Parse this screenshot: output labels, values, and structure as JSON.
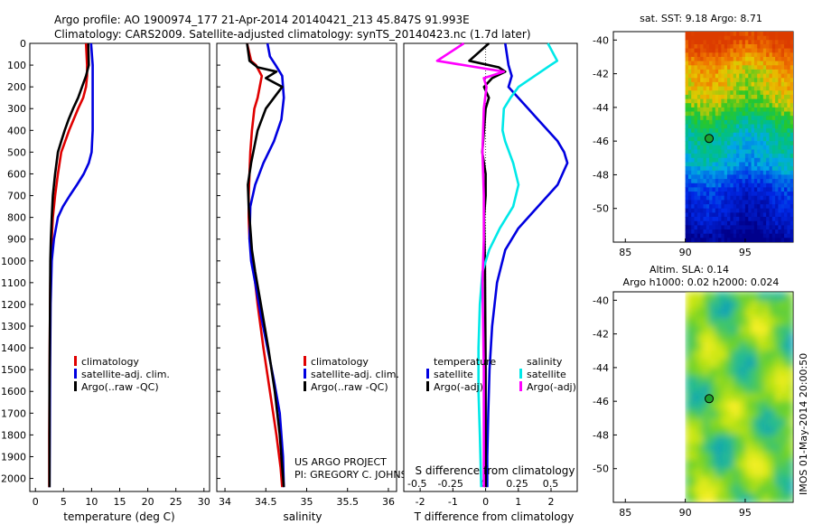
{
  "header": {
    "line1": "Argo profile: AO 1900974_177 21-Apr-2014 20140421_213 45.847S 91.993E",
    "line2": "Climatology: CARS2009. Satellite-adjusted climatology: synTS_20140423.nc (1.7d later)"
  },
  "colors": {
    "climatology": "#e00000",
    "satellite": "#0000e0",
    "argo": "#000000",
    "sat_salinity": "#00e8e8",
    "argo_salinity": "#ff00ff"
  },
  "credit": {
    "line1": "US ARGO PROJECT",
    "line2": "PI: GREGORY C. JOHNSON"
  },
  "imos_stamp": "IMOS 01-May-2014 20:00:50",
  "chart_data": [
    {
      "type": "line",
      "id": "temperature",
      "xlabel": "temperature (deg C)",
      "ylabel": "",
      "xlim": [
        -1,
        31
      ],
      "ylim": [
        2060,
        0
      ],
      "xticks": [
        0,
        5,
        10,
        15,
        20,
        25,
        30
      ],
      "xtick_labels": [
        "0",
        "5",
        "10",
        "15",
        "20",
        "25",
        "30"
      ],
      "yticks": [
        0,
        100,
        200,
        300,
        400,
        500,
        600,
        700,
        800,
        900,
        1000,
        1100,
        1200,
        1300,
        1400,
        1500,
        1600,
        1700,
        1800,
        1900,
        2000
      ],
      "ytick_labels": [
        "0",
        "100",
        "200",
        "300",
        "400",
        "500",
        "600",
        "700",
        "800",
        "900",
        "1000",
        "1100",
        "1200",
        "1300",
        "1400",
        "1500",
        "1600",
        "1700",
        "1800",
        "1900",
        "2000"
      ],
      "legend": {
        "position": "lower-center",
        "entries": [
          "climatology",
          "satellite-adj. clim.",
          "Argo(..raw -QC)"
        ]
      },
      "series": [
        {
          "name": "climatology",
          "color": "#e00000",
          "x": [
            9.0,
            9.2,
            9.2,
            9.0,
            8.5,
            7.6,
            6.8,
            6.0,
            5.3,
            4.6,
            4.0,
            3.5,
            3.1,
            2.9,
            2.7,
            2.6,
            2.55,
            2.5,
            2.45,
            2.45
          ],
          "depth": [
            0,
            100,
            150,
            200,
            250,
            300,
            350,
            400,
            450,
            500,
            600,
            700,
            800,
            900,
            1000,
            1200,
            1400,
            1600,
            1800,
            2040
          ]
        },
        {
          "name": "satellite-adj. clim.",
          "color": "#0000e0",
          "x": [
            9.9,
            10.2,
            10.2,
            10.2,
            10.2,
            10.1,
            10.0,
            9.5,
            8.6,
            7.4,
            6.1,
            4.9,
            4.0,
            3.3,
            2.9,
            2.7,
            2.6,
            2.55,
            2.5
          ],
          "depth": [
            0,
            100,
            200,
            300,
            400,
            450,
            500,
            550,
            600,
            650,
            700,
            750,
            800,
            900,
            1000,
            1200,
            1500,
            1800,
            2040
          ]
        },
        {
          "name": "Argo(..raw -QC)",
          "color": "#000000",
          "x": [
            9.4,
            9.5,
            9.0,
            8.3,
            7.6,
            6.7,
            5.9,
            5.2,
            4.6,
            4.0,
            3.5,
            3.1,
            2.9,
            2.75,
            2.65,
            2.6,
            2.55,
            2.5,
            2.5
          ],
          "depth": [
            0,
            100,
            150,
            200,
            250,
            300,
            350,
            400,
            450,
            500,
            600,
            700,
            800,
            900,
            1000,
            1200,
            1400,
            1600,
            2040
          ]
        }
      ]
    },
    {
      "type": "line",
      "id": "salinity",
      "xlabel": "salinity",
      "ylabel": "",
      "xlim": [
        33.9,
        36.1
      ],
      "ylim": [
        2060,
        0
      ],
      "xticks": [
        34,
        34.5,
        35,
        35.5,
        36
      ],
      "xtick_labels": [
        "34",
        "34.5",
        "35",
        "35.5",
        "36"
      ],
      "legend": {
        "position": "lower-center",
        "entries": [
          "climatology",
          "satellite-adj. clim.",
          "Argo(..raw -QC)"
        ]
      },
      "series": [
        {
          "name": "climatology",
          "color": "#e00000",
          "x": [
            34.27,
            34.32,
            34.38,
            34.45,
            34.4,
            34.36,
            34.33,
            34.31,
            34.3,
            34.29,
            34.29,
            34.3,
            34.34,
            34.4,
            34.47,
            34.55,
            34.63,
            34.68,
            34.7
          ],
          "depth": [
            0,
            80,
            100,
            150,
            250,
            300,
            400,
            500,
            600,
            700,
            800,
            900,
            1000,
            1200,
            1400,
            1600,
            1800,
            1950,
            2040
          ]
        },
        {
          "name": "satellite-adj. clim.",
          "color": "#0000e0",
          "x": [
            34.52,
            34.55,
            34.62,
            34.7,
            34.72,
            34.69,
            34.6,
            34.47,
            34.37,
            34.31,
            34.3,
            34.32,
            34.37,
            34.44,
            34.52,
            34.6,
            34.67,
            34.71,
            34.72
          ],
          "depth": [
            0,
            60,
            100,
            150,
            250,
            350,
            450,
            550,
            650,
            750,
            900,
            1000,
            1100,
            1250,
            1400,
            1550,
            1700,
            1900,
            2040
          ]
        },
        {
          "name": "Argo(..raw -QC)",
          "color": "#000000",
          "x": [
            34.27,
            34.3,
            34.4,
            34.63,
            34.5,
            34.7,
            34.62,
            34.5,
            34.4,
            34.32,
            34.28,
            34.29,
            34.31,
            34.33,
            34.37,
            34.44,
            34.53,
            34.61,
            34.67,
            34.7,
            34.72
          ],
          "depth": [
            0,
            80,
            110,
            130,
            160,
            200,
            240,
            300,
            400,
            550,
            650,
            750,
            850,
            950,
            1050,
            1200,
            1400,
            1600,
            1800,
            1950,
            2040
          ]
        }
      ]
    },
    {
      "type": "line",
      "id": "difference",
      "xlabel": "T difference from climatology",
      "xlabel_top": "S difference from climatology",
      "ylabel": "",
      "xlim": [
        -2.5,
        2.8
      ],
      "xlim_top": [
        -0.6,
        0.7
      ],
      "ylim": [
        2060,
        0
      ],
      "xticks": [
        -2,
        -1,
        0,
        1,
        2
      ],
      "xtick_labels": [
        "-2",
        "-1",
        "0",
        "1",
        "2"
      ],
      "xticks_top": [
        -0.5,
        -0.25,
        0,
        0.25,
        0.5
      ],
      "xtick_labels_top": [
        "-0.5",
        "-0.25",
        "0",
        "0.25",
        "0.5"
      ],
      "legend": {
        "position": "lower-center",
        "headers": [
          "temperature",
          "salinity"
        ],
        "entries": [
          "satellite",
          "Argo(-adj)",
          "satellite",
          "Argo(-adj)"
        ]
      },
      "series": [
        {
          "name": "temperature satellite",
          "axis": "T",
          "color": "#0000e0",
          "x": [
            0.6,
            0.7,
            0.8,
            0.7,
            1.0,
            1.3,
            1.6,
            1.9,
            2.2,
            2.4,
            2.5,
            2.2,
            1.6,
            1.0,
            0.6,
            0.35,
            0.2,
            0.12,
            0.08,
            0.05,
            0.05
          ],
          "depth": [
            0,
            100,
            150,
            200,
            250,
            300,
            350,
            400,
            450,
            500,
            550,
            650,
            750,
            850,
            950,
            1100,
            1300,
            1500,
            1700,
            1900,
            2040
          ]
        },
        {
          "name": "temperature Argo(-adj)",
          "axis": "T",
          "color": "#000000",
          "x": [
            0.1,
            -0.5,
            0.4,
            0.6,
            0.2,
            -0.05,
            0.1,
            0.0,
            -0.05,
            -0.1,
            0.0,
            0.0,
            -0.05,
            -0.02,
            0.0,
            0.0
          ],
          "depth": [
            0,
            80,
            110,
            130,
            160,
            200,
            250,
            300,
            400,
            500,
            600,
            700,
            800,
            1000,
            1500,
            2040
          ]
        },
        {
          "name": "salinity satellite",
          "axis": "S",
          "color": "#00e8e8",
          "x": [
            0.48,
            0.55,
            0.5,
            0.26,
            0.2,
            0.15,
            0.14,
            0.16,
            0.22,
            0.26,
            0.22,
            0.12,
            0.04,
            -0.01,
            -0.03,
            -0.04,
            -0.04,
            -0.03,
            -0.02
          ],
          "depth": [
            0,
            80,
            100,
            200,
            250,
            300,
            400,
            450,
            550,
            650,
            750,
            850,
            950,
            1050,
            1200,
            1400,
            1600,
            1800,
            2040
          ]
        },
        {
          "name": "salinity Argo(-adj)",
          "axis": "S",
          "color": "#ff00ff",
          "x": [
            -0.15,
            -0.35,
            -0.05,
            0.15,
            0.0,
            0.02,
            0.0,
            -0.01,
            0.0,
            0.0,
            -0.01,
            0.0,
            0.0
          ],
          "depth": [
            0,
            80,
            110,
            130,
            160,
            200,
            300,
            500,
            700,
            900,
            1100,
            1500,
            2040
          ]
        }
      ]
    },
    {
      "type": "heatmap",
      "id": "sst_map",
      "title": "sat. SST: 9.18 Argo: 8.71",
      "xlim": [
        84,
        99
      ],
      "ylim": [
        -52,
        -39.5
      ],
      "xticks": [
        85,
        90,
        95
      ],
      "xtick_labels": [
        "85",
        "90",
        "95"
      ],
      "yticks": [
        -40,
        -42,
        -44,
        -46,
        -48,
        -50
      ],
      "ytick_labels": [
        "-40",
        "-42",
        "-44",
        "-46",
        "-48",
        "-50"
      ],
      "data_lon_range": [
        90,
        99
      ],
      "argo_marker": {
        "lon": 91.993,
        "lat": -45.847
      }
    },
    {
      "type": "heatmap",
      "id": "sla_map",
      "title": "Altim. SLA: 0.14",
      "subtitle": "Argo h1000: 0.02 h2000: 0.024",
      "xlim": [
        84,
        99
      ],
      "ylim": [
        -52,
        -39.5
      ],
      "xticks": [
        85,
        90,
        95
      ],
      "xtick_labels": [
        "85",
        "90",
        "95"
      ],
      "yticks": [
        -40,
        -42,
        -44,
        -46,
        -48,
        -50
      ],
      "ytick_labels": [
        "-40",
        "-42",
        "-44",
        "-46",
        "-48",
        "-50"
      ],
      "data_lon_range": [
        90,
        99
      ],
      "argo_marker": {
        "lon": 91.993,
        "lat": -45.847
      }
    }
  ]
}
